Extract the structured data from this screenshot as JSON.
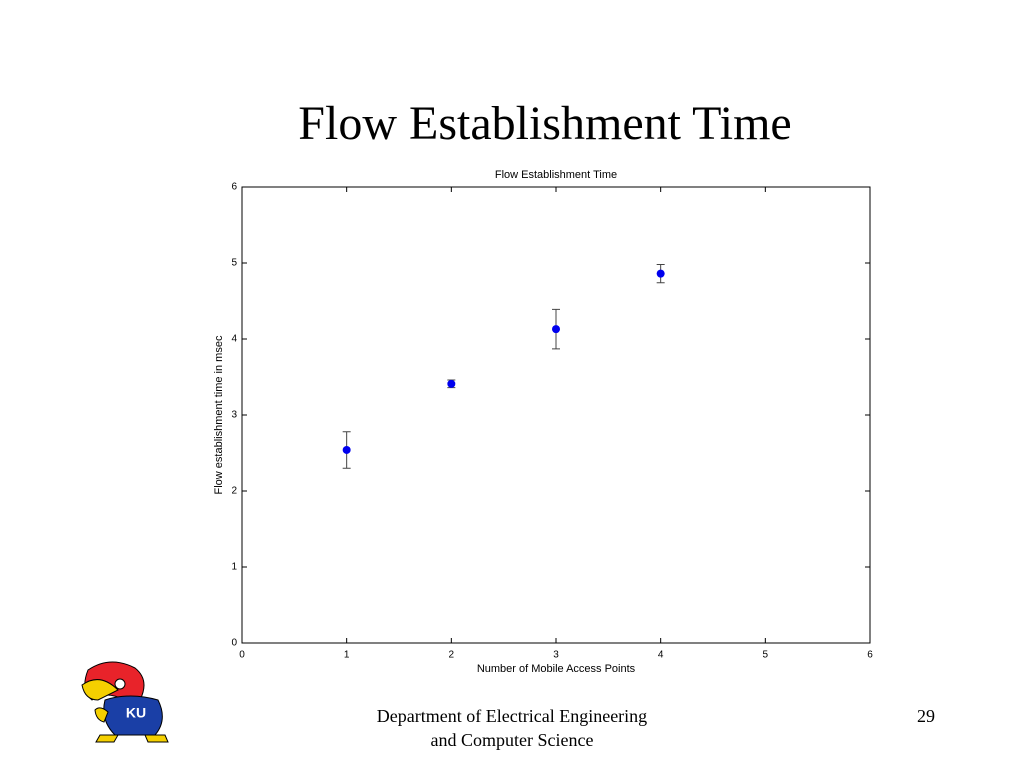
{
  "slide": {
    "title": "Flow Establishment Time",
    "footer": [
      "Department of Electrical Engineering",
      "and Computer Science"
    ],
    "page": 29,
    "logo_text": "KU"
  },
  "chart_data": {
    "type": "scatter",
    "title": "Flow Establishment Time",
    "xlabel": "Number of Mobile Access Points",
    "ylabel": "Flow establishment time in msec",
    "x": [
      1,
      2,
      3,
      4
    ],
    "series": [
      {
        "color": "#0000ee",
        "values": [
          2.54,
          3.41,
          4.13,
          4.86
        ],
        "errors": [
          0.24,
          0.05,
          0.26,
          0.12
        ]
      }
    ],
    "xlim": [
      0,
      6
    ],
    "ylim": [
      0,
      6
    ],
    "xticks": [
      0,
      1,
      2,
      3,
      4,
      5,
      6
    ],
    "yticks": [
      0,
      1,
      2,
      3,
      4,
      5,
      6
    ],
    "grid": false
  }
}
